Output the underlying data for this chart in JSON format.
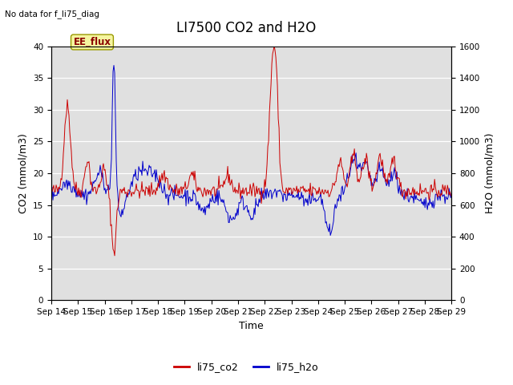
{
  "title": "LI7500 CO2 and H2O",
  "top_left_text": "No data for f_li75_diag",
  "xlabel": "Time",
  "ylabel_left": "CO2 (mmol/m3)",
  "ylabel_right": "H2O (mmol/m3)",
  "annotation_box": "EE_flux",
  "ylim_left": [
    0,
    40
  ],
  "ylim_right": [
    0,
    1600
  ],
  "yticks_left": [
    0,
    5,
    10,
    15,
    20,
    25,
    30,
    35,
    40
  ],
  "yticks_right": [
    0,
    200,
    400,
    600,
    800,
    1000,
    1200,
    1400,
    1600
  ],
  "xtick_labels": [
    "Sep 14",
    "Sep 15",
    "Sep 16",
    "Sep 17",
    "Sep 18",
    "Sep 19",
    "Sep 20",
    "Sep 21",
    "Sep 22",
    "Sep 23",
    "Sep 24",
    "Sep 25",
    "Sep 26",
    "Sep 27",
    "Sep 28",
    "Sep 29"
  ],
  "legend_labels": [
    "li75_co2",
    "li75_h2o"
  ],
  "legend_colors": [
    "#cc0000",
    "#0000cc"
  ],
  "line_co2_color": "#cc0000",
  "line_h2o_color": "#0000cc",
  "bg_color": "#e0e0e0",
  "fig_bg_color": "#ffffff",
  "title_fontsize": 12,
  "axis_label_fontsize": 9,
  "tick_fontsize": 7.5,
  "n_points": 500
}
